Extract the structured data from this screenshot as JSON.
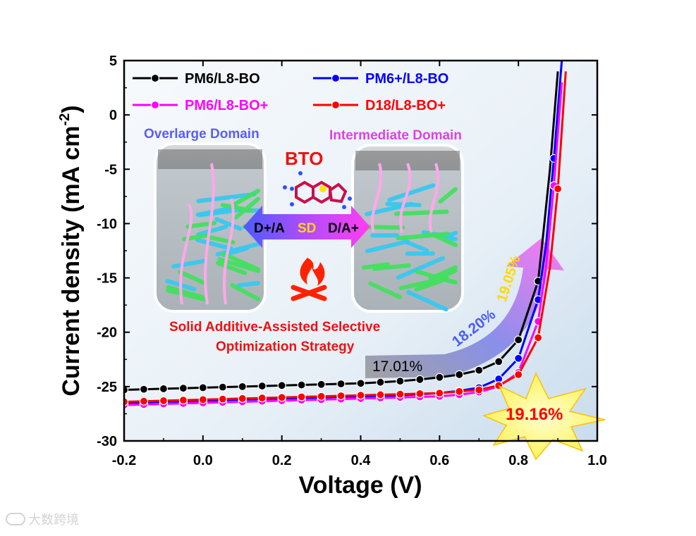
{
  "chart_data": {
    "type": "line",
    "title": "",
    "xlabel": "Voltage (V)",
    "ylabel_main": "Current density (mA cm",
    "ylabel_sup": "-2",
    "ylabel_tail": ")",
    "xlim": [
      -0.2,
      1.0
    ],
    "ylim": [
      -30,
      5
    ],
    "xticks": [
      -0.2,
      0.0,
      0.2,
      0.4,
      0.6,
      0.8,
      1.0
    ],
    "xtick_labels": [
      "-0.2",
      "0.0",
      "0.2",
      "0.4",
      "0.6",
      "0.8",
      "1.0"
    ],
    "yticks": [
      5,
      0,
      -5,
      -10,
      -15,
      -20,
      -25,
      -30
    ],
    "ytick_labels": [
      "5",
      "0",
      "-5",
      "-10",
      "-15",
      "-20",
      "-25",
      "-30"
    ],
    "legend_position": "top",
    "series": [
      {
        "name": "PM6/L8-BO",
        "color": "#000000",
        "x": [
          -0.2,
          -0.15,
          -0.1,
          -0.05,
          0.0,
          0.05,
          0.1,
          0.15,
          0.2,
          0.25,
          0.3,
          0.35,
          0.4,
          0.45,
          0.5,
          0.55,
          0.6,
          0.65,
          0.7,
          0.75,
          0.8,
          0.85,
          0.86,
          0.88,
          0.9
        ],
        "y": [
          -25.3,
          -25.25,
          -25.2,
          -25.15,
          -25.1,
          -25.05,
          -25.0,
          -24.95,
          -24.9,
          -24.85,
          -24.8,
          -24.75,
          -24.7,
          -24.6,
          -24.5,
          -24.35,
          -24.15,
          -23.9,
          -23.5,
          -22.7,
          -20.7,
          -15.3,
          -12.0,
          -5.0,
          4.0
        ],
        "markers": [
          -0.2,
          -0.15,
          -0.1,
          -0.05,
          0.0,
          0.05,
          0.1,
          0.15,
          0.2,
          0.25,
          0.3,
          0.35,
          0.4,
          0.45,
          0.5,
          0.55,
          0.6,
          0.65,
          0.7,
          0.75,
          0.8,
          0.85
        ]
      },
      {
        "name": "PM6+/L8-BO",
        "color": "#0000ff",
        "x": [
          -0.2,
          -0.15,
          -0.1,
          -0.05,
          0.0,
          0.05,
          0.1,
          0.15,
          0.2,
          0.25,
          0.3,
          0.35,
          0.4,
          0.45,
          0.5,
          0.55,
          0.6,
          0.65,
          0.7,
          0.75,
          0.8,
          0.85,
          0.87,
          0.89,
          0.9,
          0.91
        ],
        "y": [
          -26.5,
          -26.45,
          -26.4,
          -26.35,
          -26.3,
          -26.25,
          -26.2,
          -26.15,
          -26.1,
          -26.05,
          -26.0,
          -25.95,
          -25.9,
          -25.85,
          -25.8,
          -25.7,
          -25.6,
          -25.4,
          -25.1,
          -24.3,
          -22.4,
          -17.0,
          -12.0,
          -4.0,
          0.5,
          5.0
        ],
        "markers": [
          -0.2,
          -0.15,
          -0.1,
          -0.05,
          0.0,
          0.05,
          0.1,
          0.15,
          0.2,
          0.25,
          0.3,
          0.35,
          0.4,
          0.45,
          0.5,
          0.55,
          0.6,
          0.65,
          0.7,
          0.75,
          0.8,
          0.85,
          0.89
        ]
      },
      {
        "name": "PM6/L8-BO+",
        "color": "#ff00ff",
        "x": [
          -0.2,
          -0.15,
          -0.1,
          -0.05,
          0.0,
          0.05,
          0.1,
          0.15,
          0.2,
          0.25,
          0.3,
          0.35,
          0.4,
          0.45,
          0.5,
          0.55,
          0.6,
          0.65,
          0.7,
          0.75,
          0.8,
          0.85,
          0.87,
          0.89,
          0.91
        ],
        "y": [
          -26.7,
          -26.65,
          -26.6,
          -26.55,
          -26.5,
          -26.45,
          -26.4,
          -26.35,
          -26.3,
          -26.25,
          -26.2,
          -26.15,
          -26.1,
          -26.05,
          -26.0,
          -25.95,
          -25.9,
          -25.75,
          -25.5,
          -25.0,
          -23.7,
          -19.0,
          -14.0,
          -6.5,
          3.0
        ],
        "markers": [
          -0.2,
          -0.15,
          -0.1,
          -0.05,
          0.0,
          0.05,
          0.1,
          0.15,
          0.2,
          0.25,
          0.3,
          0.35,
          0.4,
          0.45,
          0.5,
          0.55,
          0.6,
          0.65,
          0.7,
          0.75,
          0.8,
          0.85,
          0.89
        ]
      },
      {
        "name": "D18/L8-BO+",
        "color": "#ff0000",
        "x": [
          -0.2,
          -0.15,
          -0.1,
          -0.05,
          0.0,
          0.05,
          0.1,
          0.15,
          0.2,
          0.25,
          0.3,
          0.35,
          0.4,
          0.45,
          0.5,
          0.55,
          0.6,
          0.65,
          0.7,
          0.75,
          0.8,
          0.85,
          0.88,
          0.9,
          0.92
        ],
        "y": [
          -26.4,
          -26.35,
          -26.3,
          -26.25,
          -26.2,
          -26.15,
          -26.1,
          -26.05,
          -26.0,
          -25.95,
          -25.9,
          -25.85,
          -25.8,
          -25.75,
          -25.7,
          -25.65,
          -25.6,
          -25.45,
          -25.3,
          -24.9,
          -23.9,
          -20.5,
          -14.0,
          -6.8,
          4.0
        ],
        "markers": [
          -0.2,
          -0.15,
          -0.1,
          -0.05,
          0.0,
          0.05,
          0.1,
          0.15,
          0.2,
          0.25,
          0.3,
          0.35,
          0.4,
          0.45,
          0.5,
          0.55,
          0.6,
          0.65,
          0.7,
          0.75,
          0.8,
          0.85,
          0.9
        ]
      }
    ],
    "annotations": {
      "left_domain": "Overlarge Domain",
      "right_domain": "Intermediate Domain",
      "bto": "BTO",
      "arrow_left": "D+/A",
      "arrow_mid": "SD",
      "arrow_right": "D/A+",
      "strategy_line1": "Solid Additive-Assisted Selective",
      "strategy_line2": "Optimization Strategy",
      "pce_1": "17.01%",
      "pce_2": "18.20%",
      "pce_3": "19.05%",
      "pce_best": "19.16%"
    }
  },
  "watermark": "大数跨境"
}
